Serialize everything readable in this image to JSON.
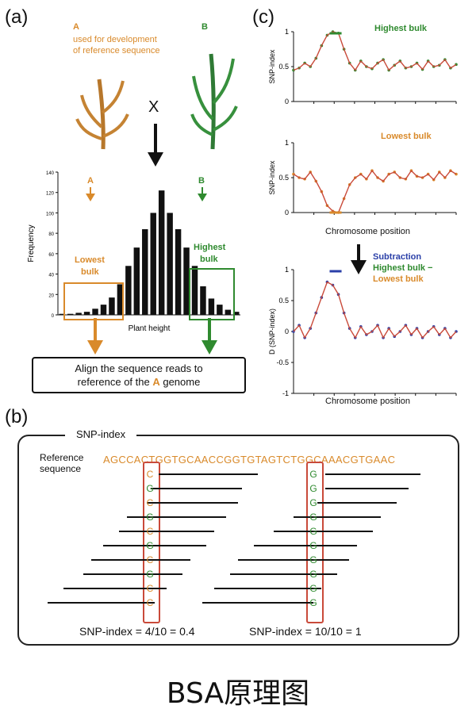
{
  "panels": {
    "a": "(a)",
    "b": "(b)",
    "c": "(c)"
  },
  "panel_a": {
    "parent_a_letter": "A",
    "parent_a_desc_1": "used for development",
    "parent_a_desc_2": "of reference sequence",
    "parent_b_letter": "B",
    "cross_symbol": "X",
    "hist_arrow_a": "A",
    "hist_arrow_b": "B",
    "lowest_bulk_1": "Lowest",
    "lowest_bulk_2": "bulk",
    "highest_bulk_1": "Highest",
    "highest_bulk_2": "bulk",
    "align_line_1": "Align the sequence reads to",
    "align_line_2_prefix": "reference of the ",
    "align_line_2_a": "A",
    "align_line_2_suffix": " genome"
  },
  "panel_b": {
    "title": "SNP-index",
    "ref_label_1": "Reference",
    "ref_label_2": "sequence",
    "ref_seq_1": "AGCCAC",
    "ref_snp_1": "T",
    "ref_seq_2": "GGTGCAACCGGTGTAGT",
    "ref_snp_2": "C",
    "ref_seq_3": "TGGCAAACGTGAAC",
    "column1_bases": [
      "C",
      "G",
      "C",
      "G",
      "C",
      "G",
      "C",
      "G",
      "C",
      "C"
    ],
    "column2_bases": [
      "G",
      "G",
      "G",
      "G",
      "G",
      "G",
      "G",
      "G",
      "G",
      "G"
    ],
    "snp_index_1": "SNP-index = 4/10 = 0.4",
    "snp_index_2": "SNP-index = 10/10 = 1"
  },
  "caption": "BSA原理图",
  "colors": {
    "orange": "#d98a2b",
    "green": "#2f8a2f",
    "blue": "#2a3fa8",
    "red": "#c94a3a"
  },
  "chart_data": [
    {
      "type": "bar",
      "title": "",
      "xlabel": "Plant height",
      "ylabel": "Frequency",
      "ylim": [
        0,
        140
      ],
      "yticks": [
        "0",
        "20",
        "40",
        "60",
        "80",
        "100",
        "120",
        "140"
      ],
      "values": [
        1,
        1,
        2,
        3,
        6,
        10,
        17,
        30,
        48,
        66,
        84,
        100,
        122,
        100,
        84,
        66,
        48,
        28,
        16,
        10,
        5,
        3
      ],
      "grid": false
    },
    {
      "type": "scatter",
      "title": "Highest bulk",
      "ylabel": "SNP-index",
      "ylim": [
        0,
        1
      ],
      "yticks": [
        "0",
        "0.5",
        "1"
      ],
      "series": [
        {
          "values": [
            0.45,
            0.48,
            0.55,
            0.5,
            0.62,
            0.8,
            0.95,
            1.0,
            0.98,
            0.75,
            0.55,
            0.45,
            0.58,
            0.5,
            0.47,
            0.55,
            0.6,
            0.45,
            0.52,
            0.58,
            0.48,
            0.5,
            0.55,
            0.46,
            0.58,
            0.5,
            0.52,
            0.6,
            0.48,
            0.53
          ]
        }
      ]
    },
    {
      "type": "scatter",
      "title": "Lowest bulk",
      "ylabel": "SNP-index",
      "xlabel": "Chromosome position",
      "ylim": [
        0,
        1
      ],
      "yticks": [
        "0",
        "0.5",
        "1"
      ],
      "series": [
        {
          "values": [
            0.55,
            0.5,
            0.48,
            0.58,
            0.45,
            0.3,
            0.1,
            0.02,
            0.0,
            0.2,
            0.4,
            0.5,
            0.55,
            0.48,
            0.6,
            0.5,
            0.45,
            0.55,
            0.58,
            0.5,
            0.48,
            0.6,
            0.52,
            0.5,
            0.55,
            0.47,
            0.58,
            0.5,
            0.6,
            0.55
          ]
        }
      ]
    },
    {
      "type": "scatter",
      "title": "",
      "ylabel": "D (SNP-index)",
      "xlabel": "Chromosome position",
      "ylim": [
        -1,
        1
      ],
      "yticks": [
        "1",
        "0.5",
        "0",
        "-0.5",
        "-1"
      ],
      "legend": [
        "Subtraction",
        "Highest bulk −",
        "Lowest bulk"
      ],
      "series": [
        {
          "values": [
            0.0,
            0.1,
            -0.1,
            0.05,
            0.3,
            0.55,
            0.8,
            0.75,
            0.6,
            0.3,
            0.05,
            -0.1,
            0.08,
            -0.05,
            0.0,
            0.1,
            -0.1,
            0.05,
            -0.08,
            0.0,
            0.1,
            -0.05,
            0.05,
            -0.1,
            0.0,
            0.08,
            -0.05,
            0.05,
            -0.1,
            0.0
          ]
        }
      ]
    }
  ]
}
